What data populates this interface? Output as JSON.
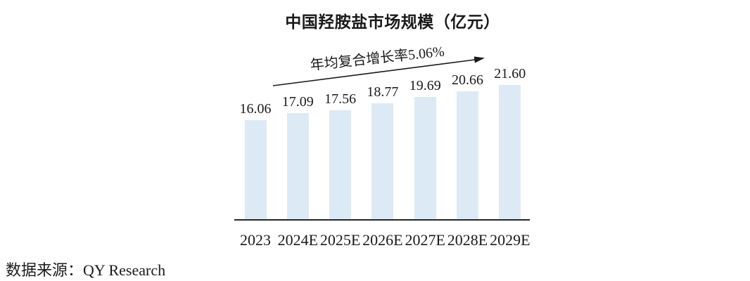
{
  "title": "中国羟胺盐市场规模（亿元）",
  "annotation": "年均复合增长率5.06%",
  "source": "数据来源：QY Research",
  "colors": {
    "bar_fill": "#dceaf6",
    "axis": "#262626",
    "arrow": "#1a1a1a",
    "text": "#1a1a1a"
  },
  "chart_data": {
    "type": "bar",
    "title": "中国羟胺盐市场规模（亿元）",
    "categories": [
      "2023",
      "2024E",
      "2025E",
      "2026E",
      "2027E",
      "2028E",
      "2029E"
    ],
    "values": [
      16.06,
      17.09,
      17.56,
      18.77,
      19.69,
      20.66,
      21.6
    ],
    "value_labels": [
      "16.06",
      "17.09",
      "17.56",
      "18.77",
      "19.69",
      "20.66",
      "21.60"
    ],
    "annotation": "年均复合增长率5.06%",
    "cagr_percent": 5.06,
    "xlabel": "",
    "ylabel": "",
    "ylim": [
      0,
      24
    ],
    "grid": false,
    "legend": "none",
    "source": "数据来源：QY Research"
  }
}
